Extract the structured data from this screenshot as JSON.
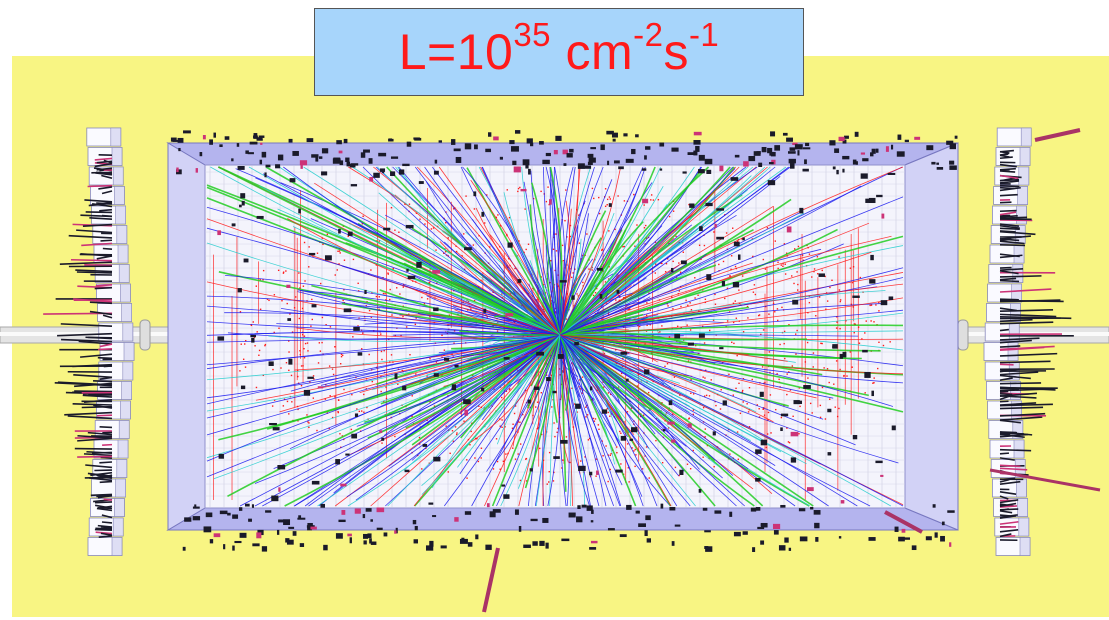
{
  "title": {
    "prefix": "L=10",
    "exponent_1": "35",
    "unit": " cm",
    "exponent_2": "-2",
    "unit_2": "s",
    "exponent_3": "-1"
  },
  "colors": {
    "background": "#f8f583",
    "title_box": "#a7d5fb",
    "title_text": "#ff1a1a",
    "detector_frame": "#b4b4ee",
    "track_blue": "#1a1aee",
    "track_red": "#ff1a1a",
    "track_cyan": "#22cccc",
    "track_green": "#22cc22",
    "hit_dark": "#1a1a2a",
    "hit_magenta": "#cc3377"
  },
  "icons": {
    "detector": "particle-collision-event-display"
  }
}
